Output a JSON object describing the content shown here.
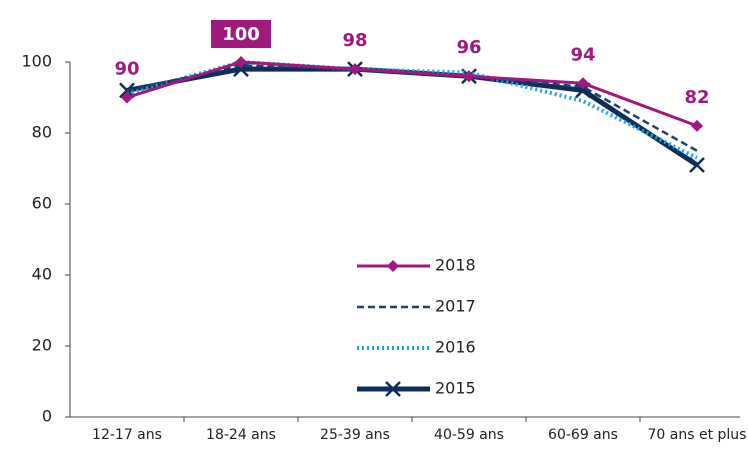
{
  "chart_data": {
    "type": "line",
    "categories": [
      "12-17 ans",
      "18-24 ans",
      "25-39 ans",
      "40-59 ans",
      "60-69 ans",
      "70 ans et plus"
    ],
    "series": [
      {
        "name": "2018",
        "color": "#a0197f",
        "style": "solid",
        "marker": "diamond",
        "values": [
          90,
          100,
          98,
          96,
          94,
          82
        ]
      },
      {
        "name": "2017",
        "color": "#1f3f6e",
        "style": "dashed",
        "marker": "none",
        "values": [
          92,
          99,
          98,
          96,
          93,
          75
        ]
      },
      {
        "name": "2016",
        "color": "#1ea6de",
        "style": "dotted",
        "marker": "none",
        "values": [
          91,
          100,
          98,
          97,
          89,
          73
        ]
      },
      {
        "name": "2015",
        "color": "#0e2d5a",
        "style": "thick",
        "marker": "cross",
        "values": [
          92,
          98,
          98,
          96,
          92,
          71
        ]
      }
    ],
    "ylim": [
      0,
      100
    ],
    "yticks": [
      0,
      20,
      40,
      60,
      80,
      100
    ],
    "grid": false,
    "data_labels_series": 0
  }
}
